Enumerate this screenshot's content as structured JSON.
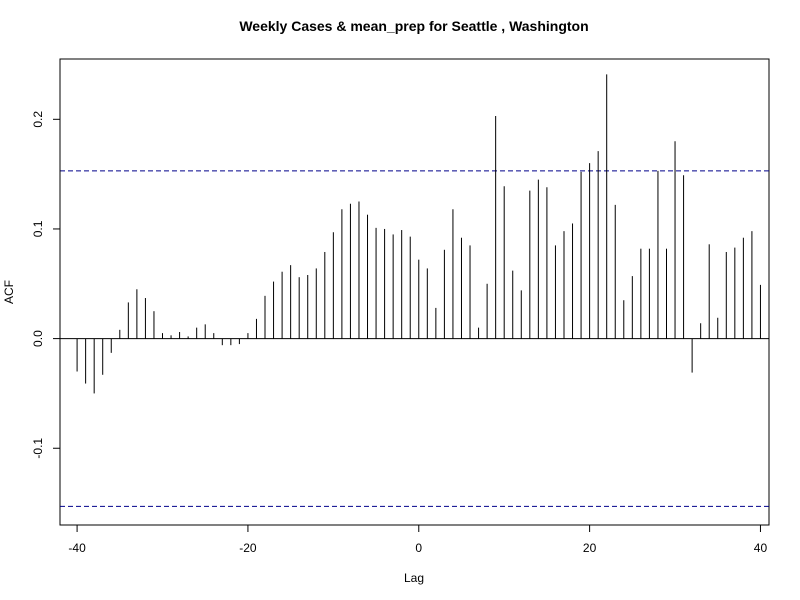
{
  "chart_data": {
    "type": "bar",
    "title": "Weekly Cases & mean_prep for Seattle , Washington",
    "xlabel": "Lag",
    "ylabel": "ACF",
    "xlim": [
      -42,
      41
    ],
    "ylim": [
      -0.17,
      0.255
    ],
    "xticks": [
      -40,
      -20,
      0,
      20,
      40
    ],
    "yticks": [
      -0.1,
      0.0,
      0.1,
      0.2
    ],
    "ytick_labels": [
      "-0.1",
      "0.0",
      "0.1",
      "0.2"
    ],
    "confidence_bound": 0.153,
    "lags": [
      -40,
      -39,
      -38,
      -37,
      -36,
      -35,
      -34,
      -33,
      -32,
      -31,
      -30,
      -29,
      -28,
      -27,
      -26,
      -25,
      -24,
      -23,
      -22,
      -21,
      -20,
      -19,
      -18,
      -17,
      -16,
      -15,
      -14,
      -13,
      -12,
      -11,
      -10,
      -9,
      -8,
      -7,
      -6,
      -5,
      -4,
      -3,
      -2,
      -1,
      0,
      1,
      2,
      3,
      4,
      5,
      6,
      7,
      8,
      9,
      10,
      11,
      12,
      13,
      14,
      15,
      16,
      17,
      18,
      19,
      20,
      21,
      22,
      23,
      24,
      25,
      26,
      27,
      28,
      29,
      30,
      31,
      32,
      33,
      34,
      35,
      36,
      37,
      38,
      39,
      40
    ],
    "acf": [
      -0.03,
      -0.041,
      -0.05,
      -0.033,
      -0.013,
      0.008,
      0.033,
      0.045,
      0.037,
      0.025,
      0.005,
      0.003,
      0.006,
      0.002,
      0.01,
      0.013,
      0.005,
      -0.006,
      -0.006,
      -0.005,
      0.005,
      0.018,
      0.039,
      0.052,
      0.061,
      0.067,
      0.056,
      0.058,
      0.064,
      0.079,
      0.097,
      0.118,
      0.123,
      0.125,
      0.113,
      0.101,
      0.1,
      0.095,
      0.099,
      0.093,
      0.072,
      0.064,
      0.028,
      0.081,
      0.118,
      0.092,
      0.085,
      0.01,
      0.05,
      0.203,
      0.139,
      0.062,
      0.044,
      0.135,
      0.145,
      0.138,
      0.085,
      0.098,
      0.105,
      0.152,
      0.16,
      0.171,
      0.241,
      0.122,
      0.035,
      0.057,
      0.082,
      0.082,
      0.153,
      0.082,
      0.18,
      0.149,
      -0.031,
      0.014,
      0.086,
      0.019,
      0.079,
      0.083,
      0.092,
      0.098,
      0.049
    ],
    "colors": {
      "bars": "#000000",
      "bound": "#00008b",
      "zero": "#000000"
    }
  }
}
